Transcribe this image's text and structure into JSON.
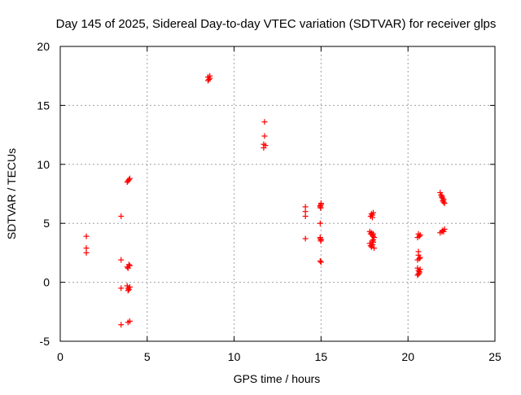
{
  "chart_data": {
    "type": "scatter",
    "title": "Day 145 of 2025, Sidereal Day-to-day VTEC variation (SDTVAR) for receiver glps",
    "xlabel": "GPS time / hours",
    "ylabel": "SDTVAR / TECUs",
    "xlim": [
      0,
      25
    ],
    "ylim": [
      -5,
      20
    ],
    "xticks": [
      0,
      5,
      10,
      15,
      20,
      25
    ],
    "yticks": [
      -5,
      0,
      5,
      10,
      15,
      20
    ],
    "grid": true,
    "marker": "+",
    "marker_color": "#ff0000",
    "series": [
      {
        "name": "SDTVAR",
        "points": [
          [
            1.5,
            3.9
          ],
          [
            1.5,
            2.9
          ],
          [
            1.5,
            2.5
          ],
          [
            3.5,
            5.6
          ],
          [
            3.5,
            1.9
          ],
          [
            3.5,
            -0.5
          ],
          [
            3.5,
            -3.6
          ],
          [
            3.85,
            8.5
          ],
          [
            3.95,
            8.7
          ],
          [
            4.0,
            8.8
          ],
          [
            3.9,
            8.6
          ],
          [
            3.85,
            1.3
          ],
          [
            3.95,
            1.5
          ],
          [
            4.0,
            1.4
          ],
          [
            3.9,
            1.2
          ],
          [
            3.85,
            -0.3
          ],
          [
            3.9,
            -0.5
          ],
          [
            3.95,
            -0.6
          ],
          [
            4.0,
            -0.4
          ],
          [
            3.9,
            -0.7
          ],
          [
            3.9,
            -3.4
          ],
          [
            4.0,
            -3.3
          ],
          [
            8.5,
            17.4
          ],
          [
            8.55,
            17.2
          ],
          [
            8.6,
            17.3
          ],
          [
            8.5,
            17.1
          ],
          [
            8.6,
            17.5
          ],
          [
            11.75,
            13.6
          ],
          [
            11.75,
            12.4
          ],
          [
            11.7,
            11.7
          ],
          [
            11.7,
            11.4
          ],
          [
            11.8,
            11.6
          ],
          [
            14.1,
            6.4
          ],
          [
            14.1,
            6.0
          ],
          [
            14.1,
            5.6
          ],
          [
            14.1,
            3.7
          ],
          [
            14.95,
            6.5
          ],
          [
            15.0,
            6.7
          ],
          [
            14.95,
            6.4
          ],
          [
            15.0,
            6.6
          ],
          [
            14.98,
            6.3
          ],
          [
            14.95,
            5.0
          ],
          [
            14.95,
            3.8
          ],
          [
            15.0,
            3.6
          ],
          [
            14.98,
            3.5
          ],
          [
            14.95,
            3.7
          ],
          [
            14.95,
            1.8
          ],
          [
            15.0,
            1.7
          ],
          [
            17.85,
            5.6
          ],
          [
            17.9,
            5.8
          ],
          [
            17.95,
            5.7
          ],
          [
            18.0,
            5.9
          ],
          [
            17.95,
            5.5
          ],
          [
            17.8,
            4.3
          ],
          [
            17.85,
            4.1
          ],
          [
            17.9,
            4.2
          ],
          [
            17.95,
            4.0
          ],
          [
            18.0,
            3.9
          ],
          [
            18.05,
            3.8
          ],
          [
            18.0,
            4.1
          ],
          [
            17.8,
            3.3
          ],
          [
            17.85,
            3.1
          ],
          [
            17.9,
            3.0
          ],
          [
            17.95,
            3.2
          ],
          [
            18.0,
            3.4
          ],
          [
            18.05,
            2.9
          ],
          [
            17.95,
            3.5
          ],
          [
            18.0,
            3.6
          ],
          [
            20.6,
            4.1
          ],
          [
            20.65,
            3.9
          ],
          [
            20.7,
            4.0
          ],
          [
            20.55,
            3.8
          ],
          [
            20.6,
            2.6
          ],
          [
            20.6,
            2.3
          ],
          [
            20.65,
            2.0
          ],
          [
            20.55,
            1.9
          ],
          [
            20.7,
            2.1
          ],
          [
            20.55,
            1.2
          ],
          [
            20.6,
            1.0
          ],
          [
            20.65,
            0.8
          ],
          [
            20.6,
            0.7
          ],
          [
            20.7,
            1.1
          ],
          [
            20.55,
            0.6
          ],
          [
            20.65,
            0.9
          ],
          [
            21.85,
            7.6
          ],
          [
            21.9,
            7.4
          ],
          [
            21.95,
            7.2
          ],
          [
            22.0,
            7.1
          ],
          [
            22.05,
            7.0
          ],
          [
            21.95,
            7.3
          ],
          [
            22.0,
            6.9
          ],
          [
            22.05,
            6.8
          ],
          [
            22.1,
            6.7
          ],
          [
            21.85,
            4.2
          ],
          [
            21.95,
            4.3
          ],
          [
            22.0,
            4.4
          ],
          [
            22.05,
            4.3
          ],
          [
            22.1,
            4.5
          ]
        ]
      }
    ]
  }
}
